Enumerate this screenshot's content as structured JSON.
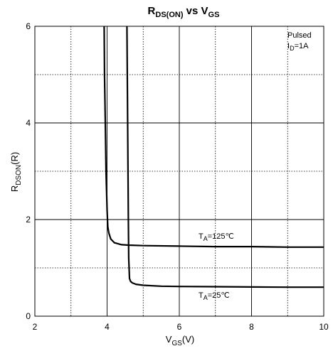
{
  "chart_data": {
    "type": "line",
    "title": {
      "main": "R",
      "sub": "DS(ON)",
      "mid": " vs V",
      "sub2": "GS"
    },
    "xlabel": {
      "main": "V",
      "sub": "GS",
      "suffix": "(V)"
    },
    "ylabel": {
      "main": "R",
      "sub": "DSON",
      "suffix": "(R)"
    },
    "xlim": [
      2,
      10
    ],
    "ylim": [
      0,
      6
    ],
    "x_ticks": [
      2,
      4,
      6,
      8,
      10
    ],
    "y_ticks": [
      0,
      2,
      4,
      6
    ],
    "x_minor_ticks": [
      3,
      5,
      7,
      9
    ],
    "y_minor_ticks": [
      1,
      3,
      5
    ],
    "grid": true,
    "annotations": [
      {
        "text": "Pulsed"
      },
      {
        "main": "I",
        "sub": "D",
        "suffix": "=1A"
      }
    ],
    "series": [
      {
        "label": {
          "main": "T",
          "sub": "A",
          "suffix": "=125℃"
        },
        "x": [
          3.92,
          3.93,
          3.95,
          3.97,
          4.0,
          4.02,
          4.05,
          4.1,
          4.2,
          4.4,
          4.6,
          5.0,
          6.0,
          7.0,
          8.0,
          9.0,
          10.0
        ],
        "y": [
          6.0,
          5.0,
          4.0,
          3.0,
          2.2,
          1.85,
          1.72,
          1.6,
          1.52,
          1.48,
          1.47,
          1.46,
          1.45,
          1.44,
          1.44,
          1.43,
          1.43
        ]
      },
      {
        "label": {
          "main": "T",
          "sub": "A",
          "suffix": "=25℃"
        },
        "x": [
          4.55,
          4.56,
          4.57,
          4.58,
          4.59,
          4.6,
          4.62,
          4.65,
          4.7,
          4.8,
          5.0,
          5.5,
          6.0,
          7.0,
          8.0,
          9.0,
          10.0
        ],
        "y": [
          6.0,
          5.0,
          4.0,
          3.0,
          2.0,
          1.2,
          0.78,
          0.72,
          0.69,
          0.66,
          0.64,
          0.62,
          0.615,
          0.61,
          0.605,
          0.6,
          0.6
        ]
      }
    ],
    "colors": {
      "line": "#000000",
      "grid": "#000000",
      "background": "#ffffff"
    }
  }
}
